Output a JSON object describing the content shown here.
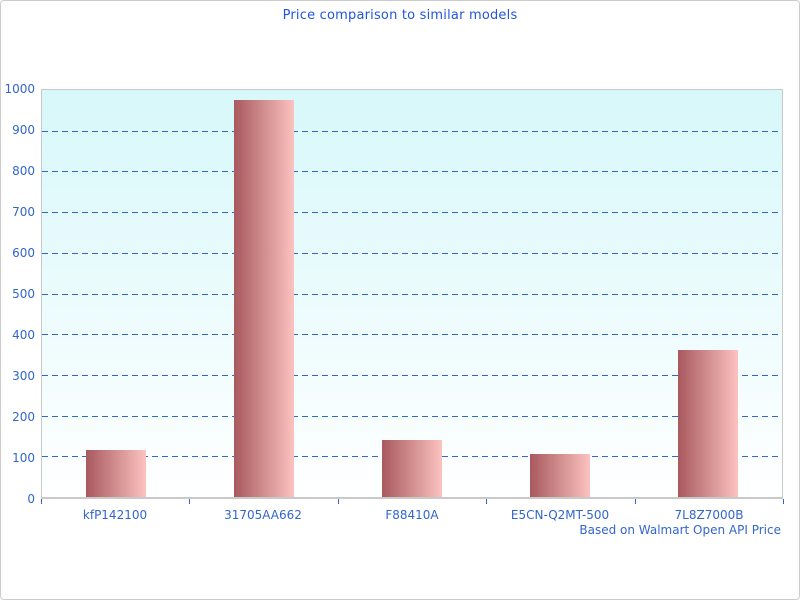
{
  "chart_data": {
    "type": "bar",
    "title": "Price comparison to similar models",
    "categories": [
      "kfP142100",
      "31705AA662",
      "F88410A",
      "E5CN-Q2MT-500",
      "7L8Z7000B"
    ],
    "values": [
      115,
      975,
      140,
      105,
      360
    ],
    "xlabel": "",
    "ylabel": "",
    "ylim": [
      0,
      1000
    ],
    "ytick_step": 100,
    "grid": "horizontal-dashed",
    "legend": "none",
    "note": "Based on Walmart Open API Price",
    "colors": {
      "title_text": "#2255dd",
      "axis_label_text": "#3366cc",
      "gridline": "#3366cc",
      "x_tick": "#3366cc",
      "bar_gradient_left": "#a8595e",
      "bar_gradient_right": "#fcc3c0",
      "plot_bg_top": "#d7f8fa",
      "plot_bg_bottom": "#ffffff",
      "plot_border": "#c9c9c9",
      "canvas_border": "#cccccc"
    }
  }
}
